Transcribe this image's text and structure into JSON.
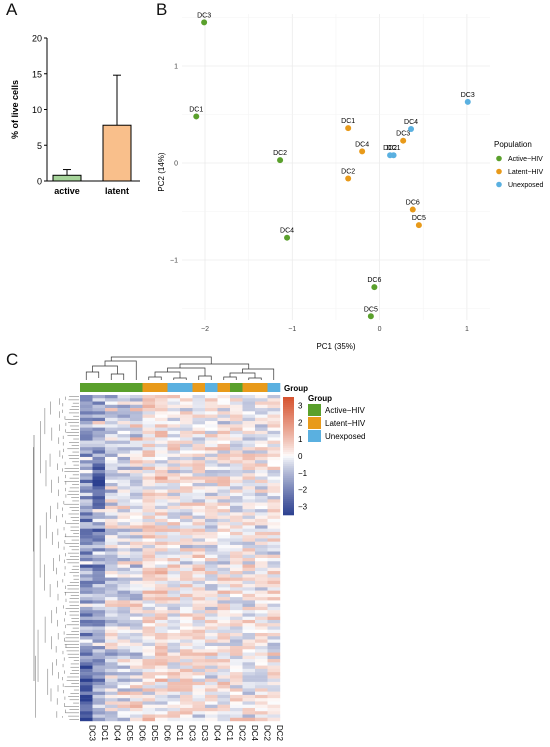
{
  "panels": {
    "a": {
      "letter": "A"
    },
    "b": {
      "letter": "B"
    },
    "c": {
      "letter": "C"
    }
  },
  "chart_data": [
    {
      "type": "bar",
      "panel": "A",
      "title": "",
      "xlabel": "",
      "ylabel": "% of live cells",
      "ylim": [
        0,
        20
      ],
      "yticks": [
        0,
        5,
        10,
        15,
        20
      ],
      "categories": [
        "active",
        "latent"
      ],
      "values": [
        0.8,
        7.8
      ],
      "error_upper": [
        1.6,
        14.8
      ],
      "colors": [
        "#a6d49a",
        "#f9bf8b"
      ]
    },
    {
      "type": "scatter",
      "panel": "B",
      "title": "",
      "xlabel": "PC1 (35%)",
      "ylabel": "PC2 (14%)",
      "xlim": [
        -2.25,
        1.1
      ],
      "ylim": [
        -1.6,
        1.45
      ],
      "xticks": [
        -2,
        -1,
        0,
        1
      ],
      "yticks": [
        -1,
        0,
        1
      ],
      "grid": true,
      "legend": {
        "title": "Population",
        "position": "right"
      },
      "series": [
        {
          "name": "Active−HIV",
          "color": "#5aa02c",
          "points": [
            {
              "label": "DC3",
              "x": -2.01,
              "y": 1.45
            },
            {
              "label": "DC1",
              "x": -2.1,
              "y": 0.48
            },
            {
              "label": "DC2",
              "x": -1.14,
              "y": 0.03
            },
            {
              "label": "DC4",
              "x": -1.06,
              "y": -0.77
            },
            {
              "label": "DC6",
              "x": -0.06,
              "y": -1.28
            },
            {
              "label": "DC5",
              "x": -0.1,
              "y": -1.58
            }
          ]
        },
        {
          "name": "Latent−HIV",
          "color": "#e89a1a",
          "points": [
            {
              "label": "DC1",
              "x": -0.36,
              "y": 0.36
            },
            {
              "label": "DC4",
              "x": -0.2,
              "y": 0.12
            },
            {
              "label": "DC2",
              "x": -0.36,
              "y": -0.16
            },
            {
              "label": "DC3",
              "x": 0.27,
              "y": 0.23
            },
            {
              "label": "DC6",
              "x": 0.38,
              "y": -0.48
            },
            {
              "label": "DC5",
              "x": 0.45,
              "y": -0.64
            }
          ]
        },
        {
          "name": "Unexposed",
          "color": "#5ab0e0",
          "points": [
            {
              "label": "DC3",
              "x": 1.01,
              "y": 0.63
            },
            {
              "label": "DC4",
              "x": 0.36,
              "y": 0.35
            },
            {
              "label": "DC2",
              "x": 0.12,
              "y": 0.08
            },
            {
              "label": "DC1",
              "x": 0.16,
              "y": 0.08
            }
          ]
        }
      ]
    },
    {
      "type": "heatmap",
      "panel": "C",
      "title": "",
      "column_labels": [
        "DC3",
        "DC1",
        "DC4",
        "DC5",
        "DC6",
        "DC5",
        "DC6",
        "DC1",
        "DC3",
        "DC3",
        "DC4",
        "DC1",
        "DC2",
        "DC4",
        "DC2",
        "DC2"
      ],
      "column_groups": [
        "Active−HIV",
        "Active−HIV",
        "Active−HIV",
        "Active−HIV",
        "Active−HIV",
        "Latent−HIV",
        "Latent−HIV",
        "Unexposed",
        "Unexposed",
        "Latent−HIV",
        "Unexposed",
        "Latent−HIV",
        "Active−HIV",
        "Latent−HIV",
        "Latent−HIV",
        "Unexposed"
      ],
      "group_bar_label": "Group",
      "legend_group": {
        "title": "Group",
        "items": [
          {
            "name": "Active−HIV",
            "color": "#5aa02c"
          },
          {
            "name": "Latent−HIV",
            "color": "#e89a1a"
          },
          {
            "name": "Unexposed",
            "color": "#5ab0e0"
          }
        ]
      },
      "colorbar": {
        "ticks": [
          "3",
          "2",
          "1",
          "0",
          "−1",
          "−2",
          "−3"
        ],
        "range": [
          -3.5,
          3.5
        ],
        "low_color": "#2b3f8f",
        "mid_color": "#ffffff",
        "high_color": "#d6532f"
      },
      "row_count": 100,
      "values_note": "z-scored expression, approximately 100 genes x 16 samples"
    }
  ]
}
